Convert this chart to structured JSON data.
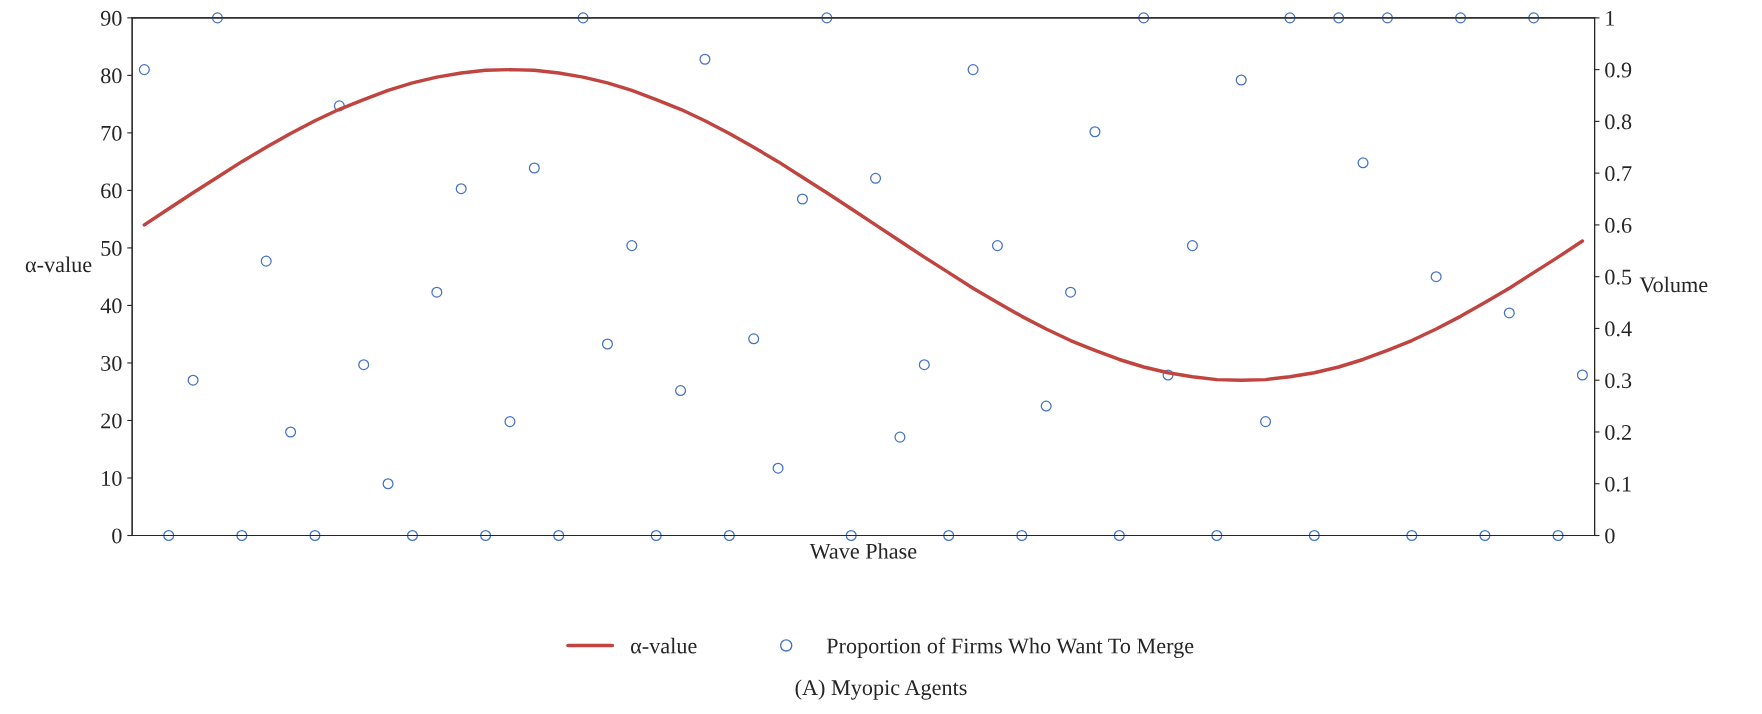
{
  "chart_data": {
    "type": "line",
    "xlabel": "Wave Phase",
    "ylabel": "α-value",
    "y2label": "Volume",
    "annotations": [
      "(A) Myopic Agents"
    ],
    "categories": [
      null,
      null,
      null,
      null,
      null,
      null,
      null,
      null,
      null,
      null,
      null,
      null,
      null,
      null,
      null,
      null,
      null,
      null,
      null,
      null,
      null,
      null,
      null,
      null,
      null,
      null,
      null,
      null,
      null,
      null,
      null,
      null,
      null,
      null,
      null,
      null,
      null,
      null,
      null,
      null,
      null,
      null,
      null,
      null,
      null,
      null,
      null,
      null,
      null,
      null,
      null,
      null,
      null,
      null,
      null,
      null,
      null,
      null,
      null,
      null
    ],
    "series": [
      {
        "name": "α-value",
        "color": "#c0443f",
        "marker": "none",
        "values": [
          54,
          56.8,
          59.6,
          62.3,
          65.0,
          67.5,
          69.9,
          72.1,
          74.1,
          75.8,
          77.4,
          78.7,
          79.7,
          80.4,
          80.9,
          81,
          80.9,
          80.4,
          79.7,
          78.7,
          77.4,
          75.8,
          74.1,
          72.1,
          69.9,
          67.5,
          65.0,
          62.3,
          59.6,
          56.8,
          54,
          51.2,
          48.4,
          45.7,
          43.0,
          40.5,
          38.1,
          35.9,
          33.9,
          32.2,
          30.6,
          29.3,
          28.3,
          27.6,
          27.1,
          27,
          27.1,
          27.6,
          28.3,
          29.3,
          30.6,
          32.2,
          33.9,
          35.9,
          38.1,
          40.5,
          43.0,
          45.7,
          48.4,
          51.2
        ]
      },
      {
        "name": "Proportion of Firms Who Want To Merge",
        "type": "scatter",
        "axis": "y2",
        "color": "#4472c4",
        "marker": "circle",
        "values": [
          0.9,
          0,
          0.3,
          1,
          0,
          0.53,
          0.2,
          0,
          0.83,
          0.33,
          0.1,
          0,
          0.47,
          0.67,
          0,
          0.22,
          0.71,
          0,
          1,
          0.37,
          0.56,
          0,
          0.28,
          0.92,
          0,
          0.38,
          0.13,
          0.65,
          1,
          0,
          0.69,
          0.19,
          0.33,
          0,
          0.9,
          0.56,
          0,
          0.25,
          0.47,
          0.78,
          0,
          1,
          0.31,
          0.56,
          0,
          0.88,
          0.22,
          1,
          0,
          1,
          0.72,
          1,
          0,
          0.5,
          1,
          0,
          0.43,
          1,
          0,
          0.31
        ]
      }
    ],
    "ylim": [
      0,
      90
    ],
    "yticks": [
      0,
      10,
      20,
      30,
      40,
      50,
      60,
      70,
      80,
      90
    ],
    "y2lim": [
      0,
      1
    ],
    "y2ticks": [
      0,
      0.1,
      0.2,
      0.3,
      0.4,
      0.5,
      0.6,
      0.7,
      0.8,
      0.9,
      1
    ],
    "legend": "bottom"
  }
}
